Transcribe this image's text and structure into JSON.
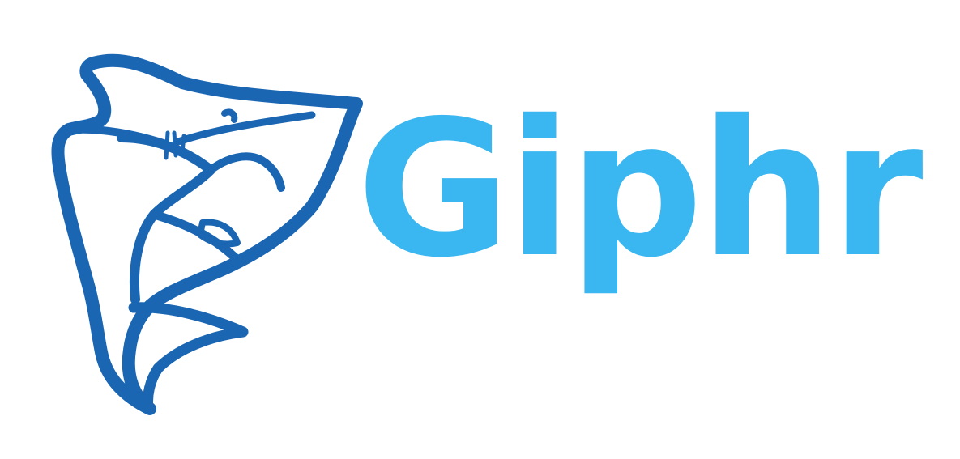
{
  "logo": {
    "icon": "shark-icon",
    "wordmark": "Giphr",
    "colors": {
      "shark": "#1a66b3",
      "wordmark": "#3ab6f0",
      "background": "#ffffff"
    }
  }
}
